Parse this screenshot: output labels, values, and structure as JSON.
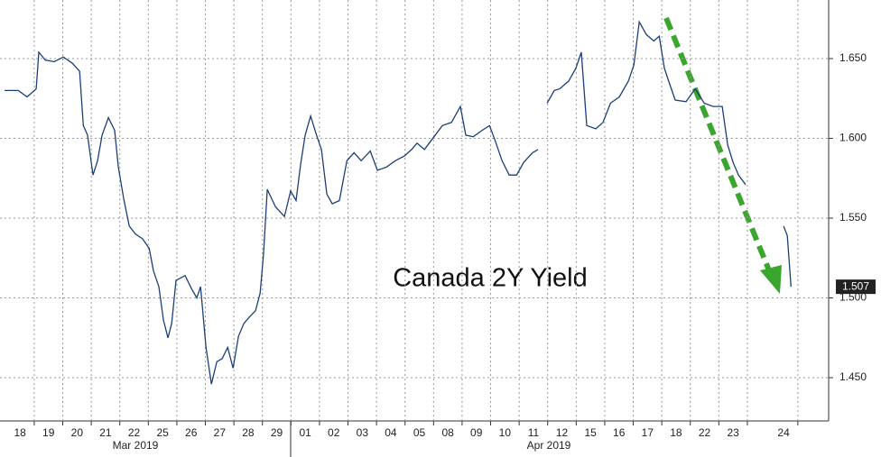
{
  "chart_data": {
    "type": "line",
    "annotation": "Canada 2Y Yield",
    "last_value": 1.507,
    "month_labels": [
      "Mar 2019",
      "Apr 2019"
    ],
    "series": [
      {
        "name": "Canada 2Y Yield",
        "color": "#1d3f78",
        "x": [
          -0.54,
          -0.06,
          0.25,
          0.57,
          0.66,
          0.89,
          1.2,
          1.52,
          1.84,
          2.09,
          2.22,
          2.37,
          2.56,
          2.72,
          2.88,
          3.1,
          3.32,
          3.45,
          3.64,
          3.83,
          4.05,
          4.3,
          4.53,
          4.68,
          4.87,
          5.03,
          5.19,
          5.32,
          5.47,
          5.79,
          6.01,
          6.2,
          6.33,
          6.52,
          6.71,
          6.9,
          7.09,
          7.28,
          7.47,
          7.66,
          7.85,
          8.04,
          8.26,
          8.42,
          8.54,
          8.67,
          8.96,
          9.27,
          9.49,
          9.68,
          9.84,
          10.0,
          10.19,
          10.38,
          10.57,
          10.76,
          10.95,
          11.2,
          11.46,
          11.71,
          11.96,
          12.28,
          12.53,
          12.85,
          13.16,
          13.48,
          13.73,
          13.92,
          14.18,
          14.43,
          14.81,
          15.13,
          15.44,
          15.63,
          15.89,
          16.2,
          16.46,
          16.65,
          16.9,
          17.15,
          17.41,
          17.66,
          17.97,
          18.16,
          18.3,
          18.48,
          18.73,
          18.92,
          19.24,
          19.49,
          19.68,
          19.87,
          20.19,
          20.44,
          20.7,
          21.01,
          21.33,
          21.52,
          21.71,
          21.96,
          22.22,
          22.41,
          22.59,
          22.72,
          22.97,
          23.35,
          23.67,
          23.99,
          24.3,
          24.62,
          24.81,
          25.0,
          25.19,
          25.44,
          26.0,
          26.77,
          26.9,
          27.03
        ],
        "values": [
          1.63,
          1.63,
          1.626,
          1.631,
          1.654,
          1.649,
          1.648,
          1.651,
          1.647,
          1.642,
          1.608,
          1.602,
          1.577,
          1.586,
          1.602,
          1.613,
          1.605,
          1.582,
          1.562,
          1.545,
          1.54,
          1.537,
          1.531,
          1.517,
          1.507,
          1.486,
          1.475,
          1.484,
          1.511,
          1.514,
          1.506,
          1.5,
          1.507,
          1.469,
          1.446,
          1.46,
          1.462,
          1.469,
          1.456,
          1.476,
          1.484,
          1.488,
          1.492,
          1.503,
          1.528,
          1.568,
          1.557,
          1.551,
          1.567,
          1.561,
          1.584,
          1.602,
          1.614,
          1.603,
          1.593,
          1.565,
          1.559,
          1.561,
          1.586,
          1.591,
          1.586,
          1.592,
          1.58,
          1.582,
          1.586,
          1.589,
          1.593,
          1.597,
          1.593,
          1.599,
          1.608,
          1.61,
          1.62,
          1.602,
          1.601,
          1.605,
          1.608,
          1.599,
          1.586,
          1.577,
          1.577,
          1.585,
          1.591,
          1.593,
          null,
          1.622,
          1.63,
          1.631,
          1.636,
          1.644,
          1.654,
          1.608,
          1.606,
          1.61,
          1.622,
          1.626,
          1.636,
          1.646,
          1.673,
          1.665,
          1.661,
          1.664,
          1.644,
          1.637,
          1.624,
          1.623,
          1.631,
          1.622,
          1.62,
          1.62,
          1.596,
          1.585,
          1.577,
          1.571,
          null,
          1.545,
          1.539,
          1.507
        ]
      }
    ],
    "xlim": [
      -0.7,
      28.35
    ],
    "xticks": [
      {
        "value": 0,
        "label": "18"
      },
      {
        "value": 1,
        "label": "19"
      },
      {
        "value": 2,
        "label": "20"
      },
      {
        "value": 3,
        "label": "21"
      },
      {
        "value": 4,
        "label": "22"
      },
      {
        "value": 5,
        "label": "25"
      },
      {
        "value": 6,
        "label": "26"
      },
      {
        "value": 7,
        "label": "27"
      },
      {
        "value": 8,
        "label": "28"
      },
      {
        "value": 9,
        "label": "29"
      },
      {
        "value": 10,
        "label": "01"
      },
      {
        "value": 11,
        "label": "02"
      },
      {
        "value": 12,
        "label": "03"
      },
      {
        "value": 13,
        "label": "04"
      },
      {
        "value": 14,
        "label": "05"
      },
      {
        "value": 15,
        "label": "08"
      },
      {
        "value": 16,
        "label": "09"
      },
      {
        "value": 17,
        "label": "10"
      },
      {
        "value": 18,
        "label": "11"
      },
      {
        "value": 19,
        "label": "12"
      },
      {
        "value": 20,
        "label": "15"
      },
      {
        "value": 21,
        "label": "16"
      },
      {
        "value": 22,
        "label": "17"
      },
      {
        "value": 23,
        "label": "18"
      },
      {
        "value": 24,
        "label": "22"
      },
      {
        "value": 25,
        "label": "23"
      },
      {
        "value": 26.77,
        "label": "24"
      }
    ],
    "ylim": [
      1.4229,
      1.6867
    ],
    "yticks": [
      {
        "value": 1.45,
        "label": "1.450"
      },
      {
        "value": 1.5,
        "label": "1.500"
      },
      {
        "value": 1.55,
        "label": "1.550"
      },
      {
        "value": 1.6,
        "label": "1.600"
      },
      {
        "value": 1.65,
        "label": "1.650"
      }
    ],
    "grid": true
  }
}
